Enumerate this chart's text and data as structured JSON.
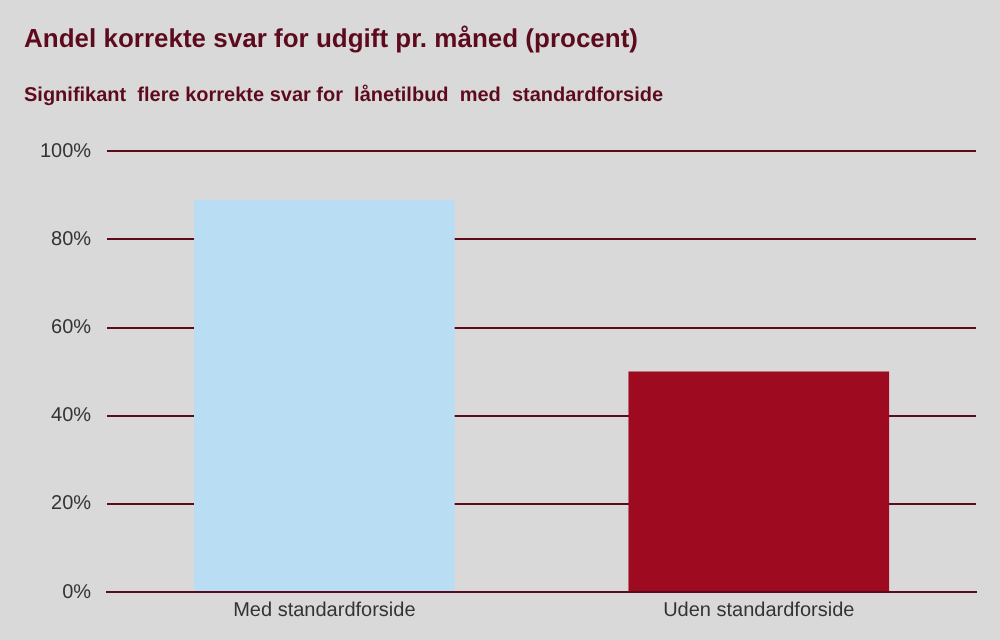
{
  "chart_data": {
    "type": "bar",
    "title": "Andel korrekte svar for udgift pr. måned (procent)",
    "subtitle": "Signifikant  flere korrekte svar for  lånetilbud  med  standardforside",
    "categories": [
      "Med standardforside",
      "Uden standardforside"
    ],
    "values": [
      89,
      50
    ],
    "colors": [
      "#b9ddf3",
      "#9e0a1f"
    ],
    "ylim": [
      0,
      100
    ],
    "yticks": [
      {
        "value": 0,
        "label": "0%"
      },
      {
        "value": 20,
        "label": "20%"
      },
      {
        "value": 40,
        "label": "40%"
      },
      {
        "value": 60,
        "label": "60%"
      },
      {
        "value": 80,
        "label": "80%"
      },
      {
        "value": 100,
        "label": "100%"
      }
    ],
    "grid": "y",
    "legend": false
  }
}
